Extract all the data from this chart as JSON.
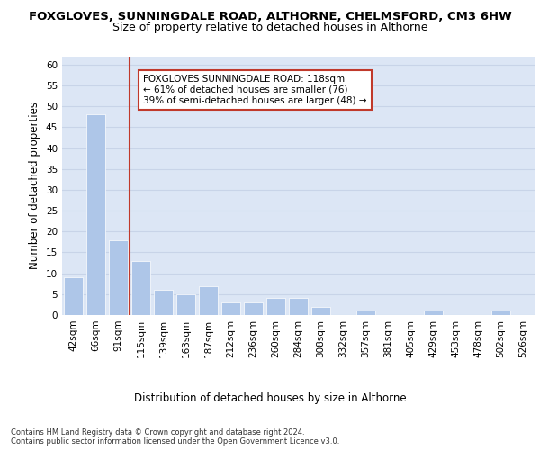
{
  "title_line1": "FOXGLOVES, SUNNINGDALE ROAD, ALTHORNE, CHELMSFORD, CM3 6HW",
  "title_line2": "Size of property relative to detached houses in Althorne",
  "xlabel": "Distribution of detached houses by size in Althorne",
  "ylabel": "Number of detached properties",
  "bar_labels": [
    "42sqm",
    "66sqm",
    "91sqm",
    "115sqm",
    "139sqm",
    "163sqm",
    "187sqm",
    "212sqm",
    "236sqm",
    "260sqm",
    "284sqm",
    "308sqm",
    "332sqm",
    "357sqm",
    "381sqm",
    "405sqm",
    "429sqm",
    "453sqm",
    "478sqm",
    "502sqm",
    "526sqm"
  ],
  "bar_values": [
    9,
    48,
    18,
    13,
    6,
    5,
    7,
    3,
    3,
    4,
    4,
    2,
    0,
    1,
    0,
    0,
    1,
    0,
    0,
    1,
    0
  ],
  "bar_color": "#aec6e8",
  "grid_color": "#c8d4e8",
  "background_color": "#dce6f5",
  "vline_color": "#c0392b",
  "annotation_box_text": "FOXGLOVES SUNNINGDALE ROAD: 118sqm\n← 61% of detached houses are smaller (76)\n39% of semi-detached houses are larger (48) →",
  "annotation_box_color": "#c0392b",
  "ylim": [
    0,
    62
  ],
  "yticks": [
    0,
    5,
    10,
    15,
    20,
    25,
    30,
    35,
    40,
    45,
    50,
    55,
    60
  ],
  "footnote": "Contains HM Land Registry data © Crown copyright and database right 2024.\nContains public sector information licensed under the Open Government Licence v3.0.",
  "title_fontsize": 9.5,
  "subtitle_fontsize": 9,
  "axis_label_fontsize": 8.5,
  "tick_fontsize": 7.5,
  "annotation_fontsize": 7.5
}
